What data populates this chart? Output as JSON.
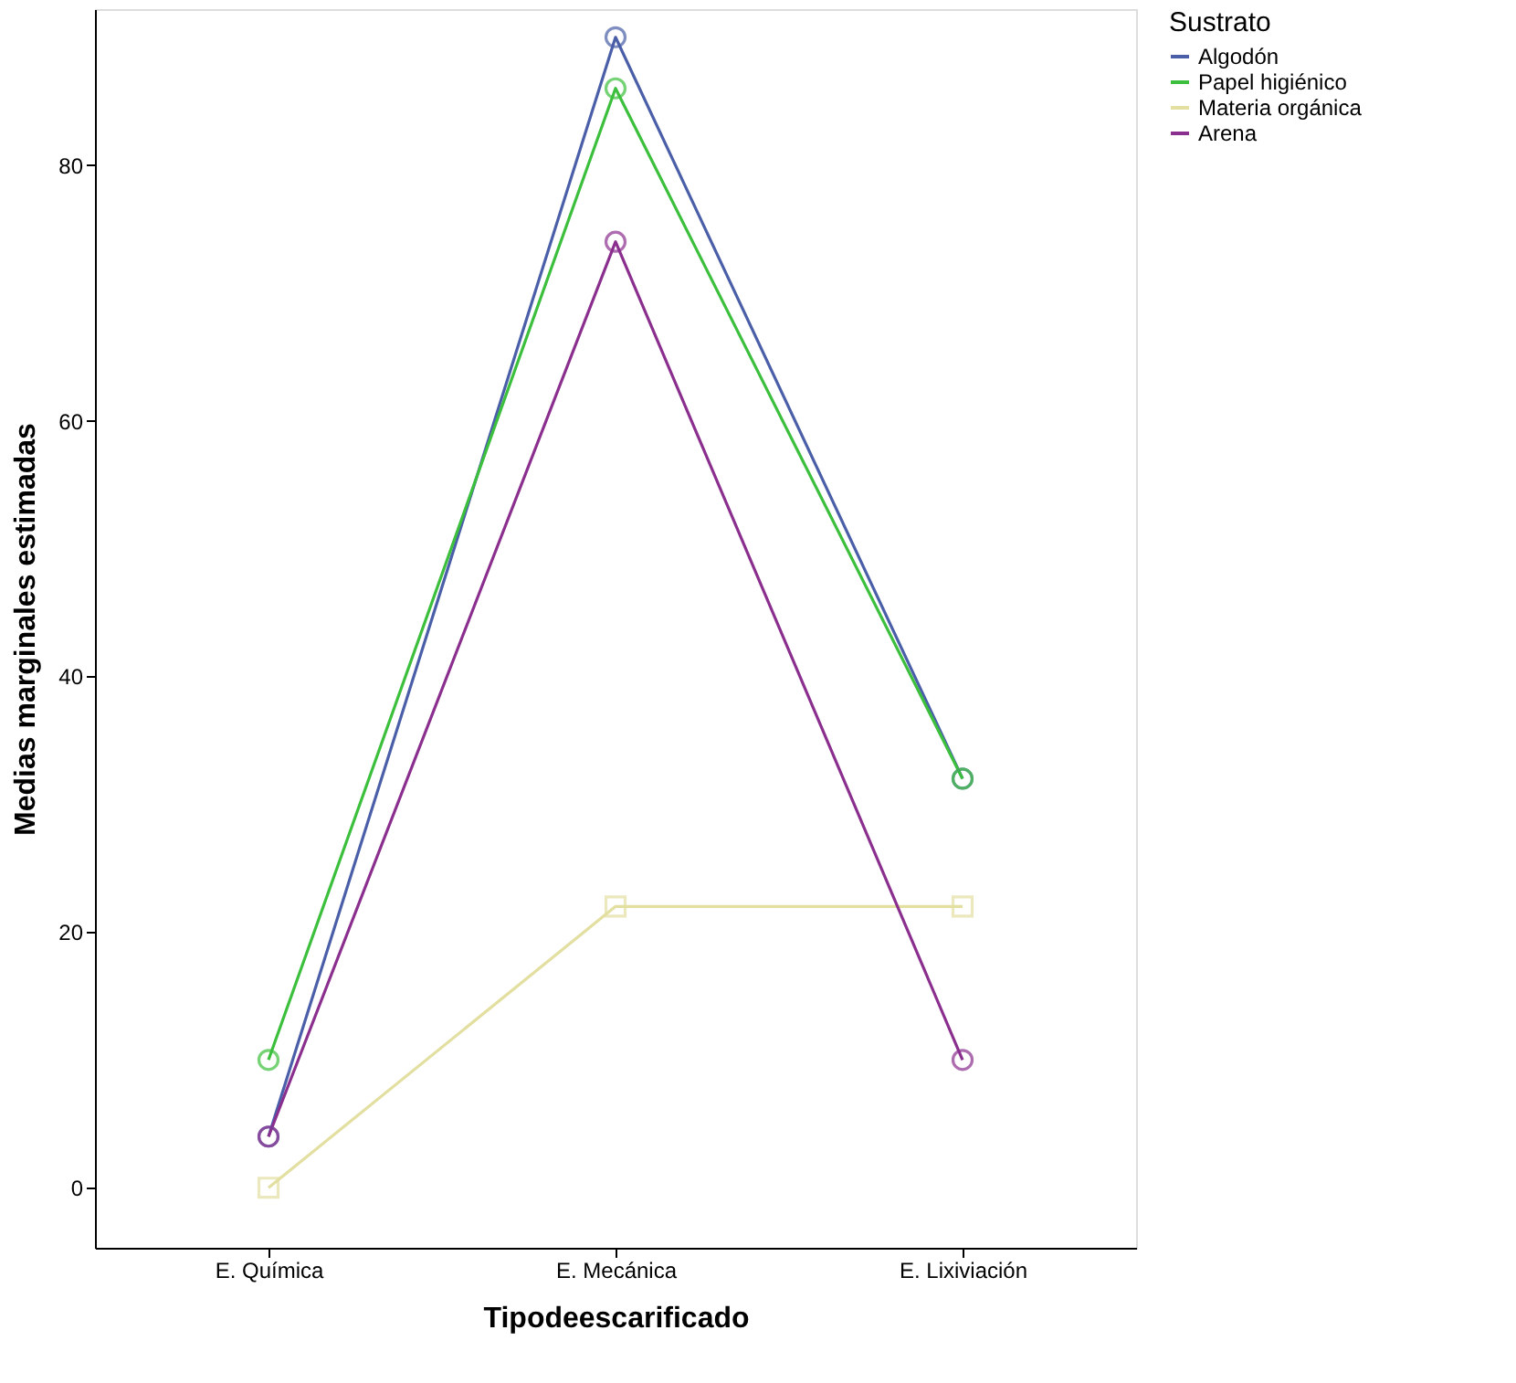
{
  "chart_data": {
    "type": "line",
    "xlabel": "Tipodeescarificado",
    "ylabel": "Medias marginales estimadas",
    "legend_title": "Sustrato",
    "categories": [
      "E. Química",
      "E. Mecánica",
      "E. Lixiviación"
    ],
    "series": [
      {
        "name": "Algodón",
        "color": "#4a5fa8",
        "values": [
          4,
          90,
          32
        ],
        "marker": "circle"
      },
      {
        "name": "Papel higiénico",
        "color": "#3cbf3c",
        "values": [
          10,
          86,
          32
        ],
        "marker": "circle"
      },
      {
        "name": "Materia orgánica",
        "color": "#e2dfa0",
        "values": [
          0,
          22,
          22
        ],
        "marker": "square"
      },
      {
        "name": "Arena",
        "color": "#8b2f8f",
        "values": [
          4,
          74,
          10
        ],
        "marker": "circle"
      }
    ],
    "ylim": [
      -4.7,
      92.2
    ],
    "yticks": [
      0,
      20,
      40,
      60,
      80
    ],
    "grid": false,
    "legend": "top right",
    "line_style": "solid"
  }
}
